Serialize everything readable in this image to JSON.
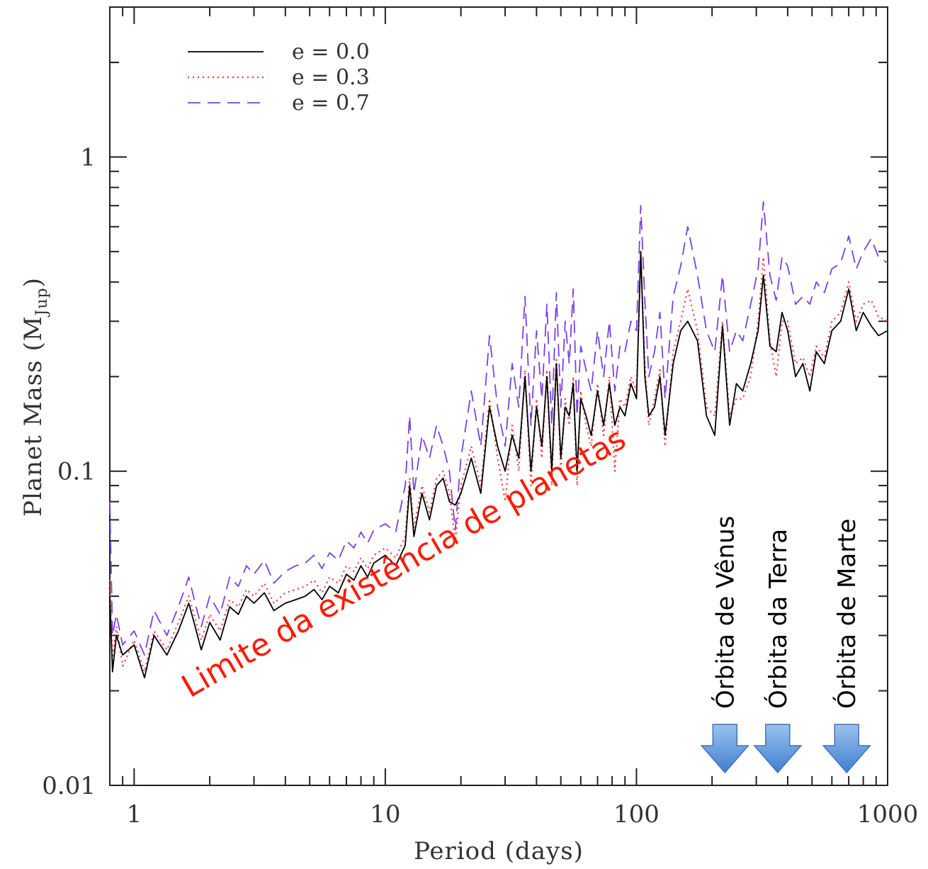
{
  "chart_data": {
    "type": "line",
    "xlabel": "Period (days)",
    "ylabel_main": "Planet Mass (M",
    "ylabel_sub": "Jup",
    "ylabel_close": ")",
    "x_scale": "log",
    "y_scale": "log",
    "xlim": [
      0.8,
      1000
    ],
    "ylim": [
      0.01,
      3
    ],
    "x_ticks": [
      {
        "value": 1,
        "label": "1"
      },
      {
        "value": 10,
        "label": "10"
      },
      {
        "value": 100,
        "label": "100"
      },
      {
        "value": 1000,
        "label": "1000"
      }
    ],
    "y_ticks": [
      {
        "value": 0.01,
        "label": "0.01"
      },
      {
        "value": 0.1,
        "label": "0.1"
      },
      {
        "value": 1,
        "label": "1"
      }
    ],
    "legend_position": "top-left",
    "series": [
      {
        "name": "e = 0.0",
        "color": "#000000",
        "style": "solid",
        "x": [
          0.8,
          0.82,
          0.85,
          0.9,
          1.0,
          1.1,
          1.2,
          1.35,
          1.5,
          1.65,
          1.75,
          1.85,
          2.0,
          2.2,
          2.4,
          2.6,
          2.8,
          3.0,
          3.3,
          3.6,
          4.0,
          4.4,
          4.8,
          5.2,
          5.6,
          6.0,
          6.5,
          7.0,
          7.5,
          8.0,
          8.5,
          9.0,
          10.0,
          11.0,
          12.0,
          12.5,
          13.0,
          14.0,
          15.0,
          16.0,
          17.0,
          18.0,
          19.0,
          20.0,
          22.0,
          24.0,
          26.0,
          28.0,
          30.0,
          32.0,
          34.0,
          36.0,
          38.0,
          40.0,
          42.0,
          44.0,
          46.0,
          48.0,
          50.0,
          52.0,
          54.0,
          56.0,
          58.0,
          60.0,
          63.0,
          66.0,
          70.0,
          74.0,
          78.0,
          82.0,
          86.0,
          90.0,
          95.0,
          100.0,
          104.0,
          108.0,
          112.0,
          118.0,
          124.0,
          130.0,
          140.0,
          150.0,
          160.0,
          175.0,
          190.0,
          205.0,
          220.0,
          235.0,
          250.0,
          265.0,
          285.0,
          305.0,
          320.0,
          340.0,
          360.0,
          380.0,
          400.0,
          430.0,
          460.0,
          490.0,
          520.0,
          560.0,
          600.0,
          650.0,
          700.0,
          750.0,
          800.0,
          860.0,
          920.0,
          1000.0
        ],
        "y": [
          0.04,
          0.023,
          0.03,
          0.026,
          0.028,
          0.022,
          0.03,
          0.026,
          0.031,
          0.038,
          0.032,
          0.027,
          0.033,
          0.029,
          0.037,
          0.035,
          0.04,
          0.038,
          0.041,
          0.036,
          0.038,
          0.039,
          0.04,
          0.042,
          0.039,
          0.043,
          0.041,
          0.047,
          0.045,
          0.05,
          0.046,
          0.051,
          0.054,
          0.05,
          0.058,
          0.09,
          0.062,
          0.085,
          0.07,
          0.09,
          0.095,
          0.08,
          0.078,
          0.085,
          0.11,
          0.085,
          0.16,
          0.12,
          0.1,
          0.13,
          0.11,
          0.2,
          0.1,
          0.16,
          0.12,
          0.2,
          0.1,
          0.22,
          0.11,
          0.16,
          0.15,
          0.19,
          0.1,
          0.17,
          0.15,
          0.13,
          0.18,
          0.14,
          0.19,
          0.14,
          0.16,
          0.15,
          0.19,
          0.17,
          0.5,
          0.2,
          0.15,
          0.16,
          0.2,
          0.13,
          0.22,
          0.28,
          0.3,
          0.26,
          0.15,
          0.13,
          0.29,
          0.14,
          0.19,
          0.18,
          0.22,
          0.28,
          0.42,
          0.25,
          0.24,
          0.32,
          0.28,
          0.2,
          0.22,
          0.18,
          0.24,
          0.22,
          0.28,
          0.3,
          0.38,
          0.28,
          0.32,
          0.29,
          0.27,
          0.28
        ]
      },
      {
        "name": "e = 0.3",
        "color": "#ff3333",
        "style": "dotted",
        "x": [
          0.8,
          0.82,
          0.85,
          0.9,
          1.0,
          1.1,
          1.2,
          1.35,
          1.5,
          1.65,
          1.75,
          1.85,
          2.0,
          2.2,
          2.4,
          2.6,
          2.8,
          3.0,
          3.3,
          3.6,
          4.0,
          4.4,
          4.8,
          5.2,
          5.6,
          6.0,
          6.5,
          7.0,
          7.5,
          8.0,
          8.5,
          9.0,
          10.0,
          11.0,
          12.0,
          12.5,
          13.0,
          14.0,
          15.0,
          16.0,
          17.0,
          18.0,
          19.0,
          20.0,
          22.0,
          24.0,
          26.0,
          28.0,
          30.0,
          32.0,
          34.0,
          36.0,
          38.0,
          40.0,
          42.0,
          44.0,
          46.0,
          48.0,
          50.0,
          52.0,
          54.0,
          56.0,
          58.0,
          60.0,
          63.0,
          66.0,
          70.0,
          74.0,
          78.0,
          82.0,
          86.0,
          90.0,
          95.0,
          100.0,
          104.0,
          108.0,
          112.0,
          118.0,
          124.0,
          130.0,
          140.0,
          150.0,
          160.0,
          175.0,
          190.0,
          205.0,
          220.0,
          235.0,
          250.0,
          265.0,
          285.0,
          305.0,
          320.0,
          340.0,
          360.0,
          380.0,
          400.0,
          430.0,
          460.0,
          490.0,
          520.0,
          560.0,
          600.0,
          650.0,
          700.0,
          750.0,
          800.0,
          860.0,
          920.0,
          1000.0
        ],
        "y": [
          0.045,
          0.025,
          0.032,
          0.024,
          0.029,
          0.023,
          0.031,
          0.027,
          0.033,
          0.04,
          0.034,
          0.029,
          0.035,
          0.031,
          0.039,
          0.037,
          0.042,
          0.04,
          0.044,
          0.038,
          0.041,
          0.042,
          0.043,
          0.045,
          0.041,
          0.046,
          0.044,
          0.05,
          0.048,
          0.053,
          0.049,
          0.054,
          0.057,
          0.053,
          0.062,
          0.095,
          0.066,
          0.09,
          0.074,
          0.095,
          0.1,
          0.085,
          0.06,
          0.09,
          0.12,
          0.09,
          0.17,
          0.11,
          0.08,
          0.14,
          0.1,
          0.21,
          0.09,
          0.17,
          0.11,
          0.21,
          0.09,
          0.23,
          0.1,
          0.17,
          0.14,
          0.2,
          0.09,
          0.18,
          0.14,
          0.12,
          0.19,
          0.13,
          0.2,
          0.1,
          0.17,
          0.16,
          0.2,
          0.18,
          0.48,
          0.22,
          0.14,
          0.17,
          0.21,
          0.12,
          0.24,
          0.3,
          0.38,
          0.28,
          0.16,
          0.15,
          0.3,
          0.15,
          0.17,
          0.17,
          0.2,
          0.3,
          0.48,
          0.26,
          0.2,
          0.3,
          0.3,
          0.22,
          0.23,
          0.2,
          0.25,
          0.23,
          0.3,
          0.32,
          0.4,
          0.3,
          0.34,
          0.35,
          0.31,
          0.3
        ]
      },
      {
        "name": "e = 0.7",
        "color": "#7b3fe8",
        "style": "dashed",
        "x": [
          0.8,
          0.82,
          0.85,
          0.9,
          1.0,
          1.1,
          1.2,
          1.35,
          1.5,
          1.65,
          1.75,
          1.85,
          2.0,
          2.2,
          2.4,
          2.6,
          2.8,
          3.0,
          3.3,
          3.6,
          4.0,
          4.4,
          4.8,
          5.2,
          5.6,
          6.0,
          6.5,
          7.0,
          7.5,
          8.0,
          8.5,
          9.0,
          10.0,
          11.0,
          12.0,
          12.5,
          13.0,
          14.0,
          15.0,
          16.0,
          17.0,
          18.0,
          19.0,
          20.0,
          22.0,
          24.0,
          26.0,
          28.0,
          30.0,
          32.0,
          34.0,
          36.0,
          38.0,
          40.0,
          42.0,
          44.0,
          46.0,
          48.0,
          50.0,
          52.0,
          54.0,
          56.0,
          58.0,
          60.0,
          63.0,
          66.0,
          70.0,
          74.0,
          78.0,
          82.0,
          86.0,
          90.0,
          95.0,
          100.0,
          104.0,
          108.0,
          112.0,
          118.0,
          124.0,
          130.0,
          140.0,
          150.0,
          160.0,
          175.0,
          190.0,
          205.0,
          220.0,
          235.0,
          250.0,
          265.0,
          285.0,
          305.0,
          320.0,
          340.0,
          360.0,
          380.0,
          400.0,
          430.0,
          460.0,
          490.0,
          520.0,
          560.0,
          600.0,
          650.0,
          700.0,
          750.0,
          800.0,
          860.0,
          920.0,
          1000.0
        ],
        "y": [
          0.08,
          0.03,
          0.035,
          0.028,
          0.031,
          0.026,
          0.036,
          0.03,
          0.037,
          0.046,
          0.038,
          0.032,
          0.04,
          0.035,
          0.046,
          0.043,
          0.05,
          0.047,
          0.052,
          0.044,
          0.048,
          0.05,
          0.051,
          0.054,
          0.049,
          0.055,
          0.052,
          0.06,
          0.057,
          0.064,
          0.059,
          0.065,
          0.068,
          0.064,
          0.09,
          0.15,
          0.085,
          0.13,
          0.11,
          0.14,
          0.12,
          0.1,
          0.065,
          0.11,
          0.18,
          0.12,
          0.27,
          0.16,
          0.12,
          0.22,
          0.16,
          0.36,
          0.14,
          0.28,
          0.17,
          0.34,
          0.14,
          0.37,
          0.16,
          0.3,
          0.22,
          0.38,
          0.15,
          0.25,
          0.21,
          0.18,
          0.28,
          0.2,
          0.3,
          0.18,
          0.25,
          0.24,
          0.3,
          0.28,
          0.7,
          0.35,
          0.2,
          0.24,
          0.32,
          0.17,
          0.36,
          0.45,
          0.6,
          0.42,
          0.28,
          0.24,
          0.42,
          0.24,
          0.28,
          0.26,
          0.34,
          0.44,
          0.72,
          0.42,
          0.35,
          0.48,
          0.45,
          0.34,
          0.36,
          0.34,
          0.4,
          0.37,
          0.44,
          0.46,
          0.56,
          0.44,
          0.5,
          0.55,
          0.48,
          0.46
        ]
      }
    ]
  },
  "annotations": {
    "limit_label": "Limite da existência de planetas",
    "orbits": [
      {
        "label": "Órbita de Vênus",
        "period": 225
      },
      {
        "label": "Órbita da Terra",
        "period": 365
      },
      {
        "label": "Órbita de Marte",
        "period": 687
      }
    ],
    "arrow_color": "#5b9bd5"
  }
}
